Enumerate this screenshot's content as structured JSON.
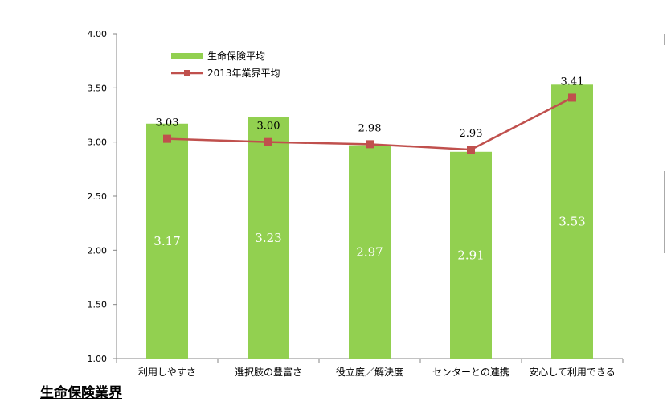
{
  "footer": {
    "title": "生命保険業界"
  },
  "chart_data": {
    "type": "bar",
    "categories": [
      "利用しやすさ",
      "選択肢の豊富さ",
      "役立度／解決度",
      "センターとの連携",
      "安心して利用できる"
    ],
    "series": [
      {
        "name": "生命保険平均",
        "type": "bar",
        "color": "#92d050",
        "values": [
          3.17,
          3.23,
          2.97,
          2.91,
          3.53
        ],
        "labels": [
          "3.17",
          "3.23",
          "2.97",
          "2.91",
          "3.53"
        ]
      },
      {
        "name": "2013年業界平均",
        "type": "line",
        "color": "#c0504d",
        "values": [
          3.03,
          3.0,
          2.98,
          2.93,
          3.41
        ],
        "labels": [
          "3.03",
          "3.00",
          "2.98",
          "2.93",
          "3.41"
        ]
      }
    ],
    "yticks": [
      "4.00",
      "3.50",
      "3.00",
      "2.50",
      "2.00",
      "1.50",
      "1.00"
    ],
    "ylim": [
      1.0,
      4.0
    ],
    "grid": false,
    "legend_position": "top-left"
  }
}
